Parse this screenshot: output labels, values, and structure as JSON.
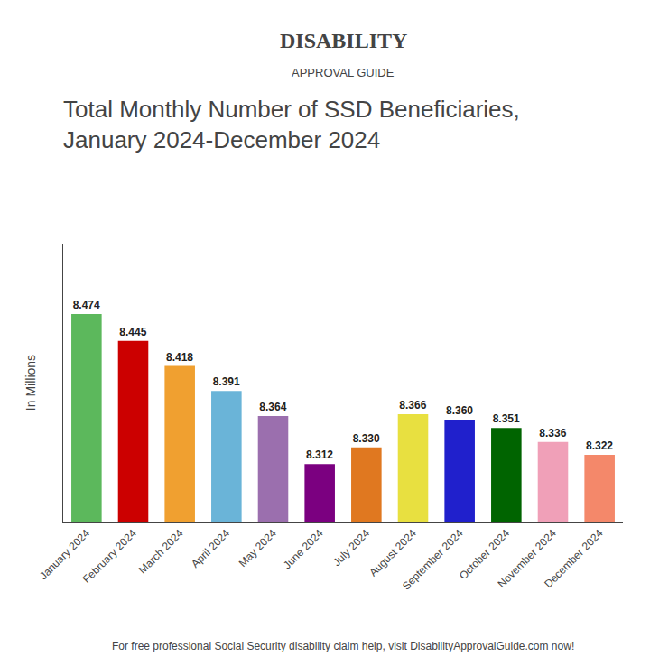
{
  "chart_data": {
    "type": "bar",
    "title": "Total Monthly Number of SSD Beneficiaries,",
    "subtitle": "January 2024-December 2024",
    "y_label": "In Millions",
    "categories": [
      "January 2024",
      "February 2024",
      "March 2024",
      "April 2024",
      "May 2024",
      "June 2024",
      "July 2024",
      "August 2024",
      "September 2024",
      "October 2024",
      "November 2024",
      "December 2024"
    ],
    "values": [
      8.474,
      8.445,
      8.418,
      8.391,
      8.364,
      8.312,
      8.33,
      8.366,
      8.36,
      8.351,
      8.336,
      8.322
    ],
    "value_labels": [
      "8.474",
      "8.445",
      "8.418",
      "8.391",
      "8.364",
      "8.312",
      "8.330",
      "8.366",
      "8.360",
      "8.351",
      "8.336",
      "8.322"
    ],
    "colors": [
      "#5cb85c",
      "#cc0000",
      "#f0a030",
      "#6ab4d8",
      "#9b6fae",
      "#7b0080",
      "#e07820",
      "#e8e040",
      "#2020cc",
      "#006400",
      "#f0a0b8",
      "#f4886a"
    ],
    "ylim": [
      8.25,
      8.55
    ],
    "yticks": [],
    "tick_labels": "x",
    "data_labels": true,
    "grid": false,
    "annotations": [
      "DISABILITY",
      "APPROVAL GUIDE",
      "For free professional Social Security disability claim help, visit DisabilityApprovalGuide.com now!"
    ]
  }
}
